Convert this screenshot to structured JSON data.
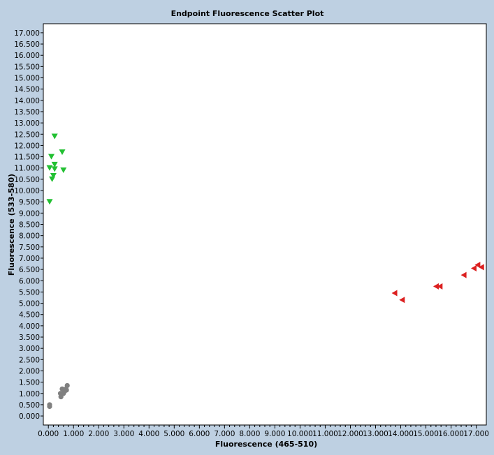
{
  "chart_data": {
    "type": "scatter",
    "title": "Endpoint Fluorescence Scatter Plot",
    "xlabel": "Fluorescence (465-510)",
    "ylabel": "Fluorescence (533-580)",
    "xlim": [
      -0.2,
      17.4
    ],
    "ylim": [
      -0.4,
      17.4
    ],
    "x_ticks": [
      "0.000",
      "1.000",
      "2.000",
      "3.000",
      "4.000",
      "5.000",
      "6.000",
      "7.000",
      "8.000",
      "9.000",
      "10.000",
      "11.000",
      "12.000",
      "13.000",
      "14.000",
      "15.000",
      "16.000",
      "17.000"
    ],
    "y_ticks": [
      "0.000",
      "0.500",
      "1.000",
      "1.500",
      "2.000",
      "2.500",
      "3.000",
      "3.500",
      "4.000",
      "4.500",
      "5.000",
      "5.500",
      "6.000",
      "6.500",
      "7.000",
      "7.500",
      "8.000",
      "8.500",
      "9.000",
      "9.500",
      "10.000",
      "10.500",
      "11.000",
      "11.500",
      "12.000",
      "12.500",
      "13.000",
      "13.500",
      "14.000",
      "14.500",
      "15.000",
      "15.500",
      "16.000",
      "16.500",
      "17.000"
    ],
    "grid": false,
    "legend": "none",
    "series": [
      {
        "marker": "triangle-down",
        "color": "#22c032",
        "points": [
          [
            0.05,
            9.5
          ],
          [
            0.05,
            11.0
          ],
          [
            0.12,
            11.5
          ],
          [
            0.15,
            10.5
          ],
          [
            0.2,
            10.65
          ],
          [
            0.25,
            10.95
          ],
          [
            0.25,
            11.15
          ],
          [
            0.25,
            12.4
          ],
          [
            0.55,
            11.7
          ],
          [
            0.6,
            10.9
          ]
        ]
      },
      {
        "marker": "triangle-left",
        "color": "#dc2020",
        "points": [
          [
            13.75,
            5.45
          ],
          [
            14.05,
            5.15
          ],
          [
            15.4,
            5.75
          ],
          [
            15.55,
            5.75
          ],
          [
            16.5,
            6.25
          ],
          [
            16.9,
            6.55
          ],
          [
            17.05,
            6.7
          ],
          [
            17.2,
            6.6
          ]
        ]
      },
      {
        "marker": "circle",
        "color": "#808080",
        "points": [
          [
            0.05,
            0.42
          ],
          [
            0.05,
            0.5
          ],
          [
            0.48,
            1.0
          ],
          [
            0.5,
            0.85
          ],
          [
            0.55,
            1.2
          ],
          [
            0.6,
            1.0
          ],
          [
            0.65,
            1.1
          ],
          [
            0.7,
            1.2
          ],
          [
            0.72,
            1.15
          ],
          [
            0.75,
            1.35
          ]
        ]
      }
    ]
  }
}
